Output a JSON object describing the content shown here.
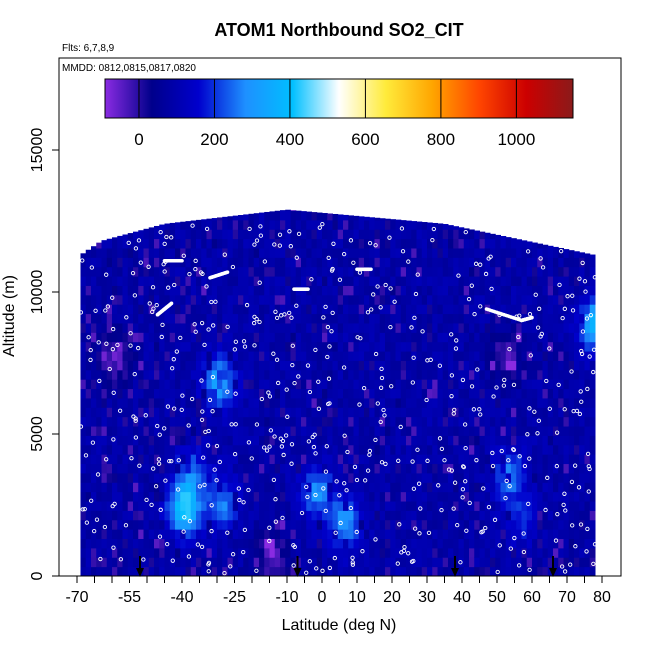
{
  "chart_data": {
    "type": "heatmap",
    "title": "ATOM1 Northbound SO2_CIT",
    "flights_label": "Flts: 6,7,8,9",
    "dates_label": "MMDD: 0812,0815,0817,0820",
    "xlabel": "Latitude (deg N)",
    "ylabel": "Altitude (m)",
    "xlim": [
      -70,
      80
    ],
    "ylim": [
      0,
      17500
    ],
    "x_major_ticks": [
      -70,
      -55,
      -40,
      -25,
      -10,
      0,
      10,
      20,
      30,
      40,
      50,
      60,
      70,
      80
    ],
    "x_minor_step": 5,
    "y_ticks": [
      0,
      5000,
      10000,
      15000
    ],
    "colorbar": {
      "range": [
        -90,
        1150
      ],
      "ticks": [
        0,
        200,
        400,
        600,
        800,
        1000
      ],
      "colors": [
        "#8a2be2",
        "#00008b",
        "#0000cd",
        "#1e90ff",
        "#00bfff",
        "#ffffff",
        "#ffeb3b",
        "#ffa500",
        "#ff4500",
        "#cc0000",
        "#8b1a1a"
      ]
    },
    "background_color": "#1d1dc8",
    "profile_top_altitude": [
      {
        "lat": -69,
        "alt": 11300
      },
      {
        "lat": -63,
        "alt": 11800
      },
      {
        "lat": -45,
        "alt": 12400
      },
      {
        "lat": -10,
        "alt": 12900
      },
      {
        "lat": 35,
        "alt": 12400
      },
      {
        "lat": 78,
        "alt": 11300
      }
    ],
    "high_values": [
      {
        "lat": -40,
        "alt": 2200,
        "value": 420
      },
      {
        "lat": -38,
        "alt": 3500,
        "value": 230
      },
      {
        "lat": -29,
        "alt": 2400,
        "value": 260
      },
      {
        "lat": -30,
        "alt": 6700,
        "value": 330
      },
      {
        "lat": -2,
        "alt": 2800,
        "value": 280
      },
      {
        "lat": 6,
        "alt": 1700,
        "value": 290
      },
      {
        "lat": 53,
        "alt": 3400,
        "value": 250
      },
      {
        "lat": 56,
        "alt": 1800,
        "value": 170
      },
      {
        "lat": 78,
        "alt": 8700,
        "value": 400
      },
      {
        "lat": -60,
        "alt": 7500,
        "value": -60
      },
      {
        "lat": 52,
        "alt": 7600,
        "value": -40
      },
      {
        "lat": -15,
        "alt": 500,
        "value": -50
      }
    ],
    "flight_leg_arrows_lat": [
      -52,
      -7,
      38,
      66
    ],
    "grid": false,
    "legend": "colorbar-top"
  }
}
